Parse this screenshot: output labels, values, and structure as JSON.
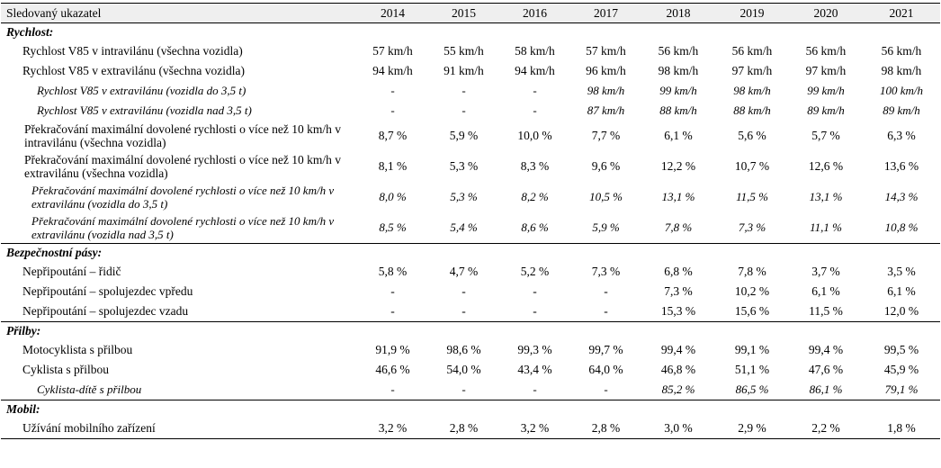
{
  "header": {
    "label": "Sledovaný ukazatel",
    "years": [
      "2014",
      "2015",
      "2016",
      "2017",
      "2018",
      "2019",
      "2020",
      "2021"
    ]
  },
  "sections": [
    {
      "title": "Rychlost:",
      "rows": [
        {
          "label": "Rychlost V85 v intravilánu (všechna vozidla)",
          "italic": false,
          "level": 1,
          "values": [
            "57 km/h",
            "55 km/h",
            "58 km/h",
            "57 km/h",
            "56 km/h",
            "56 km/h",
            "56 km/h",
            "56 km/h"
          ]
        },
        {
          "label": "Rychlost V85 v extravilánu (všechna vozidla)",
          "italic": false,
          "level": 1,
          "values": [
            "94 km/h",
            "91 km/h",
            "94 km/h",
            "96 km/h",
            "98 km/h",
            "97 km/h",
            "97 km/h",
            "98 km/h"
          ]
        },
        {
          "label": "Rychlost V85 v extravilánu (vozidla do 3,5 t)",
          "italic": true,
          "level": 2,
          "values": [
            "-",
            "-",
            "-",
            "98 km/h",
            "99 km/h",
            "98 km/h",
            "99 km/h",
            "100 km/h"
          ]
        },
        {
          "label": "Rychlost V85 v extravilánu (vozidla nad 3,5 t)",
          "italic": true,
          "level": 2,
          "values": [
            "-",
            "-",
            "-",
            "87 km/h",
            "88 km/h",
            "88 km/h",
            "89 km/h",
            "89 km/h"
          ]
        },
        {
          "label": "Překračování maximální dovolené rychlosti o více než 10 km/h v intravilánu (všechna vozidla)",
          "italic": false,
          "level": 1,
          "wrap": true,
          "values": [
            "8,7 %",
            "5,9 %",
            "10,0 %",
            "7,7 %",
            "6,1 %",
            "5,6 %",
            "5,7 %",
            "6,3 %"
          ]
        },
        {
          "label": "Překračování maximální dovolené rychlosti o více než 10 km/h v extravilánu (všechna vozidla)",
          "italic": false,
          "level": 1,
          "wrap": true,
          "values": [
            "8,1 %",
            "5,3 %",
            "8,3 %",
            "9,6 %",
            "12,2 %",
            "10,7 %",
            "12,6 %",
            "13,6 %"
          ]
        },
        {
          "label": "Překračování maximální dovolené rychlosti o více než 10 km/h v extravilánu (vozidla do 3,5 t)",
          "italic": true,
          "level": 2,
          "wrap": true,
          "values": [
            "8,0 %",
            "5,3 %",
            "8,2 %",
            "10,5 %",
            "13,1 %",
            "11,5 %",
            "13,1 %",
            "14,3 %"
          ]
        },
        {
          "label": "Překračování maximální dovolené rychlosti o více než 10 km/h v extravilánu (vozidla nad 3,5 t)",
          "italic": true,
          "level": 2,
          "wrap": true,
          "values": [
            "8,5 %",
            "5,4 %",
            "8,6 %",
            "5,9 %",
            "7,8 %",
            "7,3 %",
            "11,1 %",
            "10,8 %"
          ]
        }
      ]
    },
    {
      "title": "Bezpečnostní pásy:",
      "rows": [
        {
          "label": "Nepřipoutání – řidič",
          "italic": false,
          "level": 1,
          "values": [
            "5,8 %",
            "4,7 %",
            "5,2 %",
            "7,3 %",
            "6,8 %",
            "7,8 %",
            "3,7 %",
            "3,5 %"
          ]
        },
        {
          "label": "Nepřipoutání – spolujezdec vpředu",
          "italic": false,
          "level": 1,
          "values": [
            "-",
            "-",
            "-",
            "-",
            "7,3 %",
            "10,2 %",
            "6,1 %",
            "6,1 %"
          ]
        },
        {
          "label": "Nepřipoutání – spolujezdec vzadu",
          "italic": false,
          "level": 1,
          "values": [
            "-",
            "-",
            "-",
            "-",
            "15,3 %",
            "15,6 %",
            "11,5 %",
            "12,0 %"
          ]
        }
      ]
    },
    {
      "title": "Přilby:",
      "rows": [
        {
          "label": "Motocyklista s přilbou",
          "italic": false,
          "level": 1,
          "values": [
            "91,9 %",
            "98,6 %",
            "99,3 %",
            "99,7 %",
            "99,4 %",
            "99,1 %",
            "99,4 %",
            "99,5 %"
          ]
        },
        {
          "label": "Cyklista s přilbou",
          "italic": false,
          "level": 1,
          "values": [
            "46,6 %",
            "54,0 %",
            "43,4 %",
            "64,0 %",
            "46,8 %",
            "51,1 %",
            "47,6 %",
            "45,9 %"
          ]
        },
        {
          "label": "Cyklista-dítě s přilbou",
          "italic": true,
          "level": 2,
          "values": [
            "-",
            "-",
            "-",
            "-",
            "85,2 %",
            "86,5 %",
            "86,1 %",
            "79,1 %"
          ]
        }
      ]
    },
    {
      "title": "Mobil:",
      "rows": [
        {
          "label": "Užívání mobilního zařízení",
          "italic": false,
          "level": 1,
          "values": [
            "3,2 %",
            "2,8 %",
            "3,2 %",
            "2,8 %",
            "3,0 %",
            "2,9 %",
            "2,2 %",
            "1,8 %"
          ]
        }
      ]
    }
  ]
}
